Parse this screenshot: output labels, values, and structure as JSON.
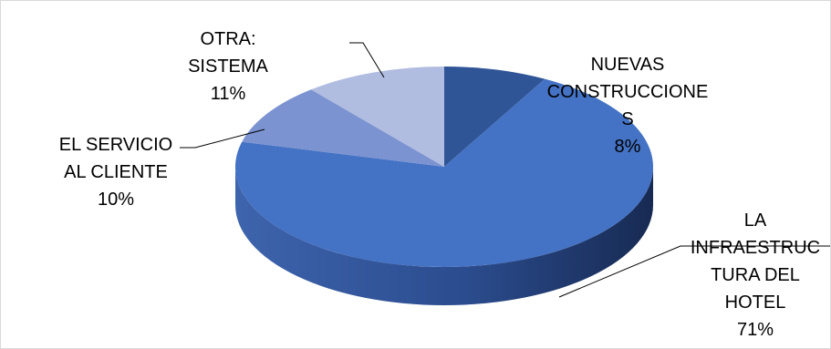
{
  "chart_data": {
    "type": "pie",
    "style": "3d",
    "legend": "none",
    "slices": [
      {
        "label_lines": [
          "NUEVAS",
          "CONSTRUCCIONE",
          "S"
        ],
        "percent_label": "8%",
        "value": 8,
        "color": "#2f5597"
      },
      {
        "label_lines": [
          "LA",
          "INFRAESTRUC",
          "TURA DEL",
          "HOTEL"
        ],
        "percent_label": "71%",
        "value": 71,
        "color": "#4472c4"
      },
      {
        "label_lines": [
          "EL SERVICIO",
          "AL CLIENTE"
        ],
        "percent_label": "10%",
        "value": 10,
        "color": "#7b93d0"
      },
      {
        "label_lines": [
          "OTRA:",
          "SISTEMA"
        ],
        "percent_label": "11%",
        "value": 11,
        "color": "#b0bce0"
      }
    ]
  }
}
